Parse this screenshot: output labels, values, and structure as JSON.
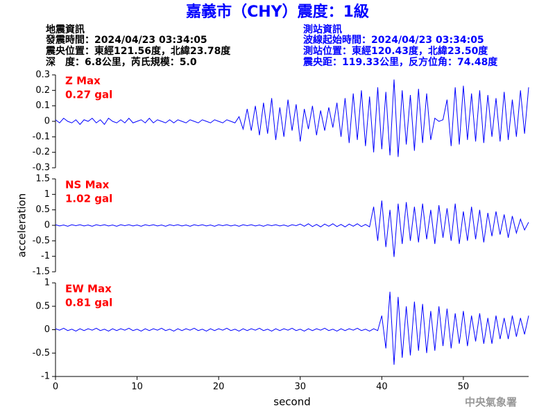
{
  "header": {
    "title": "嘉義市（CHY）震度：1級",
    "left": [
      "地震資訊",
      "發震時間：2024/04/23 03:34:05",
      "震央位置：東經121.56度，北緯23.78度",
      "深　度：6.8公里，芮氏規模：5.0"
    ],
    "right": [
      "測站資訊",
      "波線起始時間：2024/04/23 03:34:05",
      "測站位置：東經120.43度，北緯23.50度",
      "震央距：119.33公里，反方位角：74.48度"
    ]
  },
  "footer": "中央氣象署",
  "chart_data": [
    {
      "type": "line",
      "annotation": [
        "Z Max",
        "0.27 gal"
      ],
      "xlim": [
        0,
        58
      ],
      "ylim": [
        -0.3,
        0.3
      ],
      "yticks": [
        0.3,
        0.2,
        0.1,
        0,
        -0.1,
        -0.2,
        -0.3
      ],
      "x": [
        0,
        0.5,
        1,
        1.5,
        2,
        2.5,
        3,
        3.5,
        4,
        4.5,
        5,
        5.5,
        6,
        6.5,
        7,
        7.5,
        8,
        8.5,
        9,
        9.5,
        10,
        10.5,
        11,
        11.5,
        12,
        12.5,
        13,
        13.5,
        14,
        14.5,
        15,
        15.5,
        16,
        16.5,
        17,
        17.5,
        18,
        18.5,
        19,
        19.5,
        20,
        20.5,
        21,
        21.5,
        22,
        22.5,
        23,
        23.5,
        24,
        24.5,
        25,
        25.5,
        26,
        26.5,
        27,
        27.5,
        28,
        28.5,
        29,
        29.5,
        30,
        30.5,
        31,
        31.5,
        32,
        32.5,
        33,
        33.5,
        34,
        34.5,
        35,
        35.5,
        36,
        36.5,
        37,
        37.5,
        38,
        38.5,
        39,
        39.5,
        40,
        40.5,
        41,
        41.5,
        42,
        42.5,
        43,
        43.5,
        44,
        44.5,
        45,
        45.5,
        46,
        46.5,
        47,
        47.5,
        48,
        48.5,
        49,
        49.5,
        50,
        50.5,
        51,
        51.5,
        52,
        52.5,
        53,
        53.5,
        54,
        54.5,
        55,
        55.5,
        56,
        56.5,
        57,
        57.5,
        58
      ],
      "series": [
        {
          "name": "Z",
          "color": "#0000ff",
          "values": [
            0.01,
            -0.01,
            0.02,
            0,
            -0.01,
            0.01,
            -0.02,
            0.01,
            0,
            0.02,
            -0.01,
            0.01,
            -0.02,
            0.02,
            0,
            -0.01,
            0.01,
            -0.01,
            0.02,
            -0.01,
            0,
            0.01,
            -0.01,
            0.02,
            -0.01,
            0.01,
            0,
            -0.01,
            0.01,
            -0.01,
            0.01,
            0,
            -0.01,
            0.01,
            0,
            -0.01,
            0.01,
            0,
            -0.01,
            0.01,
            0,
            -0.01,
            0.01,
            0,
            -0.01,
            0.03,
            -0.05,
            0.08,
            -0.06,
            0.1,
            -0.09,
            0.12,
            -0.08,
            0.15,
            -0.12,
            0.09,
            -0.1,
            0.14,
            -0.06,
            0.11,
            -0.13,
            0.08,
            -0.05,
            0.1,
            -0.09,
            0.07,
            -0.06,
            0.09,
            -0.04,
            0.12,
            -0.1,
            0.15,
            -0.14,
            0.18,
            -0.12,
            0.2,
            -0.16,
            0.16,
            -0.2,
            0.22,
            -0.18,
            0.19,
            -0.22,
            0.27,
            -0.23,
            0.2,
            -0.15,
            0.17,
            -0.19,
            0.21,
            -0.14,
            0.18,
            -0.12,
            0.02,
            0,
            0.01,
            0.14,
            -0.16,
            0.22,
            -0.15,
            0.23,
            -0.12,
            0.18,
            -0.13,
            0.2,
            -0.14,
            0.17,
            -0.1,
            0.15,
            -0.13,
            0.19,
            -0.12,
            0.14,
            -0.1,
            0.2,
            -0.08,
            0.22
          ]
        }
      ]
    },
    {
      "type": "line",
      "annotation": [
        "NS Max",
        "1.02 gal"
      ],
      "ylabel": "acceleration",
      "xlim": [
        0,
        58
      ],
      "ylim": [
        -1.5,
        1.5
      ],
      "yticks": [
        1.5,
        1,
        0.5,
        0,
        -0.5,
        -1,
        -1.5
      ],
      "x": [
        0,
        0.5,
        1,
        1.5,
        2,
        2.5,
        3,
        3.5,
        4,
        4.5,
        5,
        5.5,
        6,
        6.5,
        7,
        7.5,
        8,
        8.5,
        9,
        9.5,
        10,
        10.5,
        11,
        11.5,
        12,
        12.5,
        13,
        13.5,
        14,
        14.5,
        15,
        15.5,
        16,
        16.5,
        17,
        17.5,
        18,
        18.5,
        19,
        19.5,
        20,
        20.5,
        21,
        21.5,
        22,
        22.5,
        23,
        23.5,
        24,
        24.5,
        25,
        25.5,
        26,
        26.5,
        27,
        27.5,
        28,
        28.5,
        29,
        29.5,
        30,
        30.5,
        31,
        31.5,
        32,
        32.5,
        33,
        33.5,
        34,
        34.5,
        35,
        35.5,
        36,
        36.5,
        37,
        37.5,
        38,
        38.5,
        39,
        39.5,
        40,
        40.5,
        41,
        41.5,
        42,
        42.5,
        43,
        43.5,
        44,
        44.5,
        45,
        45.5,
        46,
        46.5,
        47,
        47.5,
        48,
        48.5,
        49,
        49.5,
        50,
        50.5,
        51,
        51.5,
        52,
        52.5,
        53,
        53.5,
        54,
        54.5,
        55,
        55.5,
        56,
        56.5,
        57,
        57.5,
        58
      ],
      "series": [
        {
          "name": "NS",
          "color": "#0000ff",
          "values": [
            0.02,
            -0.02,
            0.01,
            -0.03,
            0.02,
            -0.01,
            0.02,
            -0.02,
            0.01,
            -0.03,
            0.02,
            -0.01,
            0.02,
            -0.02,
            0.01,
            -0.03,
            0.02,
            -0.01,
            0.02,
            -0.02,
            0.01,
            -0.03,
            0.02,
            -0.01,
            0.02,
            -0.02,
            0.01,
            -0.03,
            0.02,
            -0.01,
            0.02,
            -0.02,
            0.01,
            -0.03,
            0.02,
            -0.01,
            0.02,
            -0.02,
            0.01,
            -0.03,
            0.02,
            -0.01,
            0.02,
            -0.02,
            0.01,
            -0.03,
            0.02,
            -0.01,
            0.02,
            -0.02,
            0.01,
            -0.03,
            0.02,
            -0.01,
            0.02,
            -0.02,
            0.01,
            -0.03,
            0.02,
            -0.01,
            0.04,
            -0.03,
            0.05,
            -0.04,
            0.03,
            -0.05,
            0.04,
            -0.03,
            0.05,
            -0.04,
            0.03,
            -0.05,
            0.04,
            -0.03,
            0.05,
            -0.04,
            0.03,
            -0.05,
            0.6,
            -0.5,
            0.8,
            -0.7,
            0.5,
            -1.02,
            0.7,
            -0.6,
            0.75,
            -0.5,
            0.6,
            -0.55,
            0.7,
            -0.45,
            0.5,
            -0.6,
            0.65,
            -0.4,
            0.55,
            -0.5,
            0.7,
            -0.6,
            0.45,
            -0.5,
            0.6,
            -0.45,
            0.5,
            -0.55,
            0.4,
            -0.35,
            0.45,
            -0.3,
            0.35,
            -0.4,
            0.3,
            -0.25,
            0.2,
            -0.15,
            0.1
          ]
        }
      ]
    },
    {
      "type": "line",
      "annotation": [
        "EW Max",
        "0.81 gal"
      ],
      "xlabel": "second",
      "xlim": [
        0,
        58
      ],
      "ylim": [
        -1,
        1
      ],
      "yticks": [
        1,
        0.5,
        0,
        -0.5,
        -1
      ],
      "xticks": [
        0,
        10,
        20,
        30,
        40,
        50
      ],
      "x": [
        0,
        0.5,
        1,
        1.5,
        2,
        2.5,
        3,
        3.5,
        4,
        4.5,
        5,
        5.5,
        6,
        6.5,
        7,
        7.5,
        8,
        8.5,
        9,
        9.5,
        10,
        10.5,
        11,
        11.5,
        12,
        12.5,
        13,
        13.5,
        14,
        14.5,
        15,
        15.5,
        16,
        16.5,
        17,
        17.5,
        18,
        18.5,
        19,
        19.5,
        20,
        20.5,
        21,
        21.5,
        22,
        22.5,
        23,
        23.5,
        24,
        24.5,
        25,
        25.5,
        26,
        26.5,
        27,
        27.5,
        28,
        28.5,
        29,
        29.5,
        30,
        30.5,
        31,
        31.5,
        32,
        32.5,
        33,
        33.5,
        34,
        34.5,
        35,
        35.5,
        36,
        36.5,
        37,
        37.5,
        38,
        38.5,
        39,
        39.5,
        40,
        40.5,
        41,
        41.5,
        42,
        42.5,
        43,
        43.5,
        44,
        44.5,
        45,
        45.5,
        46,
        46.5,
        47,
        47.5,
        48,
        48.5,
        49,
        49.5,
        50,
        50.5,
        51,
        51.5,
        52,
        52.5,
        53,
        53.5,
        54,
        54.5,
        55,
        55.5,
        56,
        56.5,
        57,
        57.5,
        58
      ],
      "series": [
        {
          "name": "EW",
          "color": "#0000ff",
          "values": [
            0.02,
            -0.01,
            0.03,
            -0.02,
            0.01,
            -0.03,
            0.02,
            -0.02,
            0.02,
            -0.01,
            0.03,
            -0.02,
            0.01,
            -0.03,
            0.02,
            -0.02,
            0.02,
            -0.01,
            0.03,
            -0.02,
            0.01,
            -0.03,
            0.02,
            -0.02,
            0.02,
            -0.01,
            0.03,
            -0.02,
            0.01,
            -0.03,
            0.02,
            -0.02,
            0.02,
            -0.01,
            0.03,
            -0.02,
            0.01,
            -0.03,
            0.02,
            -0.02,
            0.02,
            -0.01,
            0.03,
            -0.02,
            0.01,
            -0.03,
            0.02,
            -0.02,
            0.02,
            -0.01,
            0.03,
            -0.02,
            0.01,
            -0.03,
            0.02,
            -0.02,
            0.02,
            -0.01,
            0.03,
            -0.02,
            0.01,
            -0.03,
            0.02,
            -0.02,
            0.02,
            -0.01,
            0.03,
            -0.02,
            0.01,
            -0.03,
            0.02,
            -0.02,
            0.02,
            -0.01,
            0.03,
            -0.02,
            0.01,
            -0.03,
            0.02,
            -0.02,
            0.3,
            -0.4,
            0.81,
            -0.75,
            0.7,
            -0.6,
            0.5,
            -0.55,
            0.6,
            -0.45,
            0.55,
            -0.5,
            0.4,
            -0.45,
            0.5,
            -0.35,
            0.45,
            -0.4,
            0.35,
            -0.3,
            0.4,
            -0.35,
            0.3,
            -0.25,
            0.35,
            -0.3,
            0.25,
            -0.3,
            0.3,
            -0.2,
            0.25,
            -0.2,
            0.3,
            -0.15,
            0.25,
            -0.1,
            0.3
          ]
        }
      ]
    }
  ]
}
